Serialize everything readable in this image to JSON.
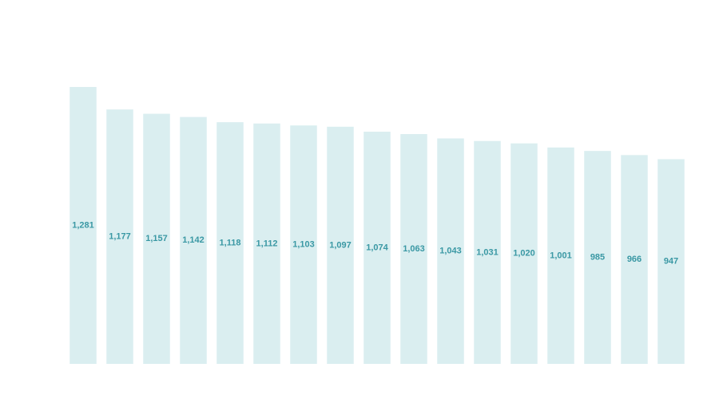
{
  "chart_data": {
    "type": "bar",
    "values": [
      1281,
      1177,
      1157,
      1142,
      1118,
      1112,
      1103,
      1097,
      1074,
      1063,
      1043,
      1031,
      1020,
      1001,
      985,
      966,
      947
    ],
    "value_labels": [
      "1,281",
      "1,177",
      "1,157",
      "1,142",
      "1,118",
      "1,112",
      "1,103",
      "1,097",
      "1,074",
      "1,063",
      "1,043",
      "1,031",
      "1,020",
      "1,001",
      "985",
      "966",
      "947"
    ],
    "color": "#daeef0",
    "label_color": "#3a98a4"
  }
}
